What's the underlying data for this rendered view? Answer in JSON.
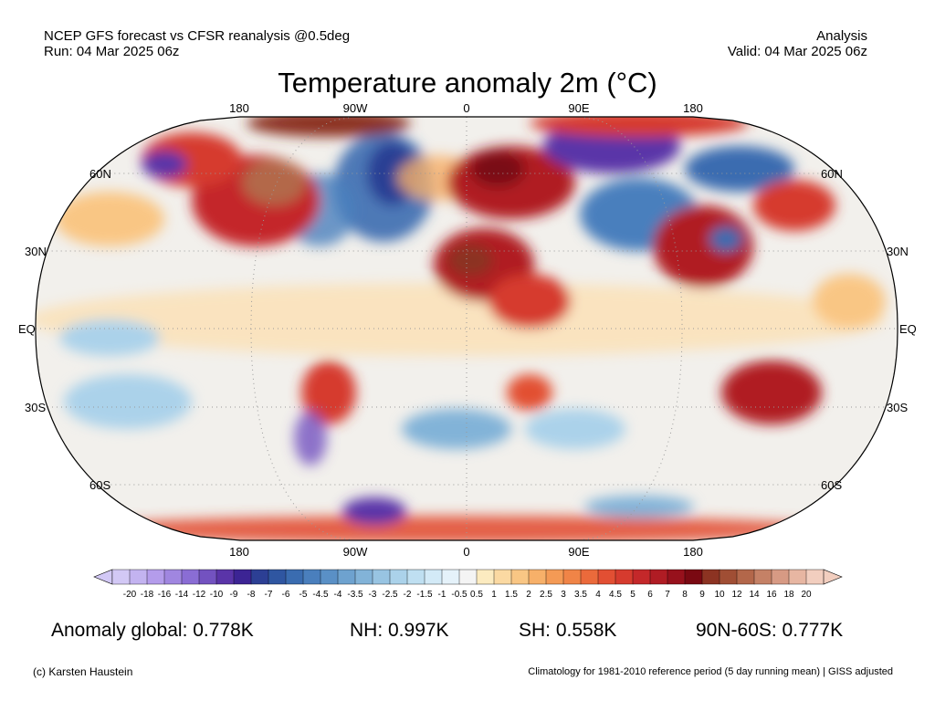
{
  "header": {
    "line1_left": "NCEP GFS forecast vs CFSR reanalysis @0.5deg",
    "line2_left": "Run: 04 Mar 2025 06z",
    "line1_right": "Analysis",
    "line2_right": "Valid: 04 Mar 2025 06z"
  },
  "title": "Temperature anomaly 2m (°C)",
  "axes": {
    "lon_labels": [
      "180",
      "90W",
      "0",
      "90E",
      "180"
    ],
    "lat_labels_left": [
      "60N",
      "30N",
      "EQ",
      "30S",
      "60S"
    ],
    "lat_labels_right": [
      "60N",
      "30N",
      "EQ",
      "30S",
      "60S"
    ]
  },
  "colorbar": {
    "tick_labels": [
      "-20",
      "-18",
      "-16",
      "-14",
      "-12",
      "-10",
      "-9",
      "-8",
      "-7",
      "-6",
      "-5",
      "-4.5",
      "-4",
      "-3.5",
      "-3",
      "-2.5",
      "-2",
      "-1.5",
      "-1",
      "-0.5",
      "0.5",
      "1",
      "1.5",
      "2",
      "2.5",
      "3",
      "3.5",
      "4",
      "4.5",
      "5",
      "6",
      "7",
      "8",
      "9",
      "10",
      "12",
      "14",
      "16",
      "18",
      "20"
    ],
    "colors": [
      "#d2c8f5",
      "#c3b3f0",
      "#b49ceb",
      "#a086e0",
      "#8a6dd4",
      "#7352c0",
      "#5a34a8",
      "#3c2494",
      "#2c3f94",
      "#2f56a1",
      "#3a6cb0",
      "#4a7fbd",
      "#5a90c6",
      "#6ea2cf",
      "#82b3d8",
      "#98c4e2",
      "#abd2ea",
      "#bfdff1",
      "#d3eaf7",
      "#e5f2fa",
      "#f4f4f4",
      "#fcebc0",
      "#fbd9a2",
      "#f9c684",
      "#f7b069",
      "#f49a55",
      "#f08447",
      "#eb6a3b",
      "#e24f33",
      "#d63b2e",
      "#c4282a",
      "#b01c24",
      "#97111c",
      "#7a0912",
      "#8c3322",
      "#a04e34",
      "#b3674a",
      "#c58166",
      "#d79a84",
      "#e7b6a2",
      "#f2cebf"
    ]
  },
  "stats": {
    "global": "Anomaly global: 0.778K",
    "nh": "NH: 0.997K",
    "sh": "SH: 0.558K",
    "arctic": "90N-60S: 0.777K"
  },
  "footer": {
    "credit": "(c) Karsten Haustein",
    "note": "Climatology for 1981-2010 reference period (5 day running mean) | GISS adjusted"
  }
}
